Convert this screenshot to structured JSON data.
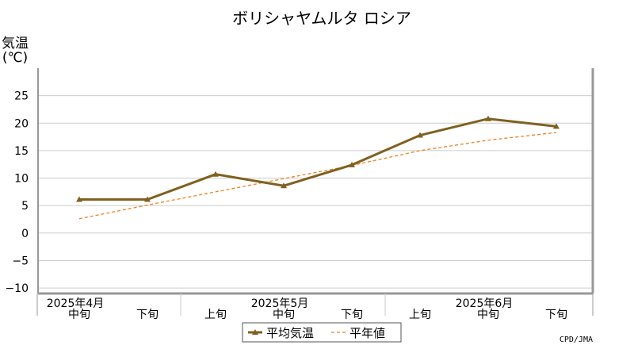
{
  "chart_data": {
    "type": "line",
    "title": "ボリシャヤムルタ ロシア",
    "ylabel_line1": "気温",
    "ylabel_line2": "(℃)",
    "ylim": [
      -11,
      30
    ],
    "yticks": [
      25,
      20,
      15,
      10,
      5,
      0,
      -5,
      -10
    ],
    "grid": true,
    "categories": [
      "中旬",
      "下旬",
      "上旬",
      "中旬",
      "下旬",
      "上旬",
      "中旬",
      "下旬"
    ],
    "month_labels": [
      {
        "label": "2025年4月",
        "index": 0
      },
      {
        "label": "2025年5月",
        "index": 3
      },
      {
        "label": "2025年6月",
        "index": 6
      }
    ],
    "series": [
      {
        "name": "平均気温",
        "color": "#806020",
        "marker": "triangle",
        "values": [
          6.1,
          6.1,
          10.7,
          8.6,
          12.4,
          17.8,
          20.8,
          19.4
        ]
      },
      {
        "name": "平年値",
        "color": "#f08020",
        "style": "dashed",
        "values": [
          2.6,
          5.1,
          7.5,
          9.9,
          12.3,
          15.0,
          16.9,
          18.3
        ]
      }
    ],
    "legend_position": "bottom-center",
    "credit": "CPD/JMA"
  }
}
